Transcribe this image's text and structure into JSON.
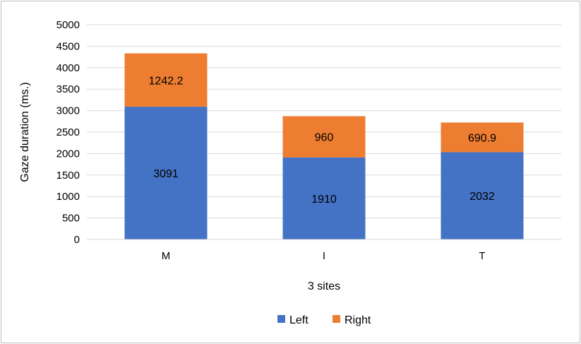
{
  "chart_data": {
    "type": "bar",
    "stacked": true,
    "categories": [
      "M",
      "I",
      "T"
    ],
    "series": [
      {
        "name": "Left",
        "color": "#4472c4",
        "values": [
          3091,
          1910,
          2032
        ],
        "labels": [
          "3091",
          "1910",
          "2032"
        ]
      },
      {
        "name": "Right",
        "color": "#ed7d31",
        "values": [
          1242.2,
          960,
          690.9
        ],
        "labels": [
          "1242.2",
          "960",
          "690.9"
        ]
      }
    ],
    "xlabel": "3 sites",
    "ylabel": "Gaze duration (ms.)",
    "ylim": [
      0,
      5000
    ],
    "yticks": [
      0,
      500,
      1000,
      1500,
      2000,
      2500,
      3000,
      3500,
      4000,
      4500,
      5000
    ],
    "grid": true,
    "legend_position": "bottom"
  }
}
